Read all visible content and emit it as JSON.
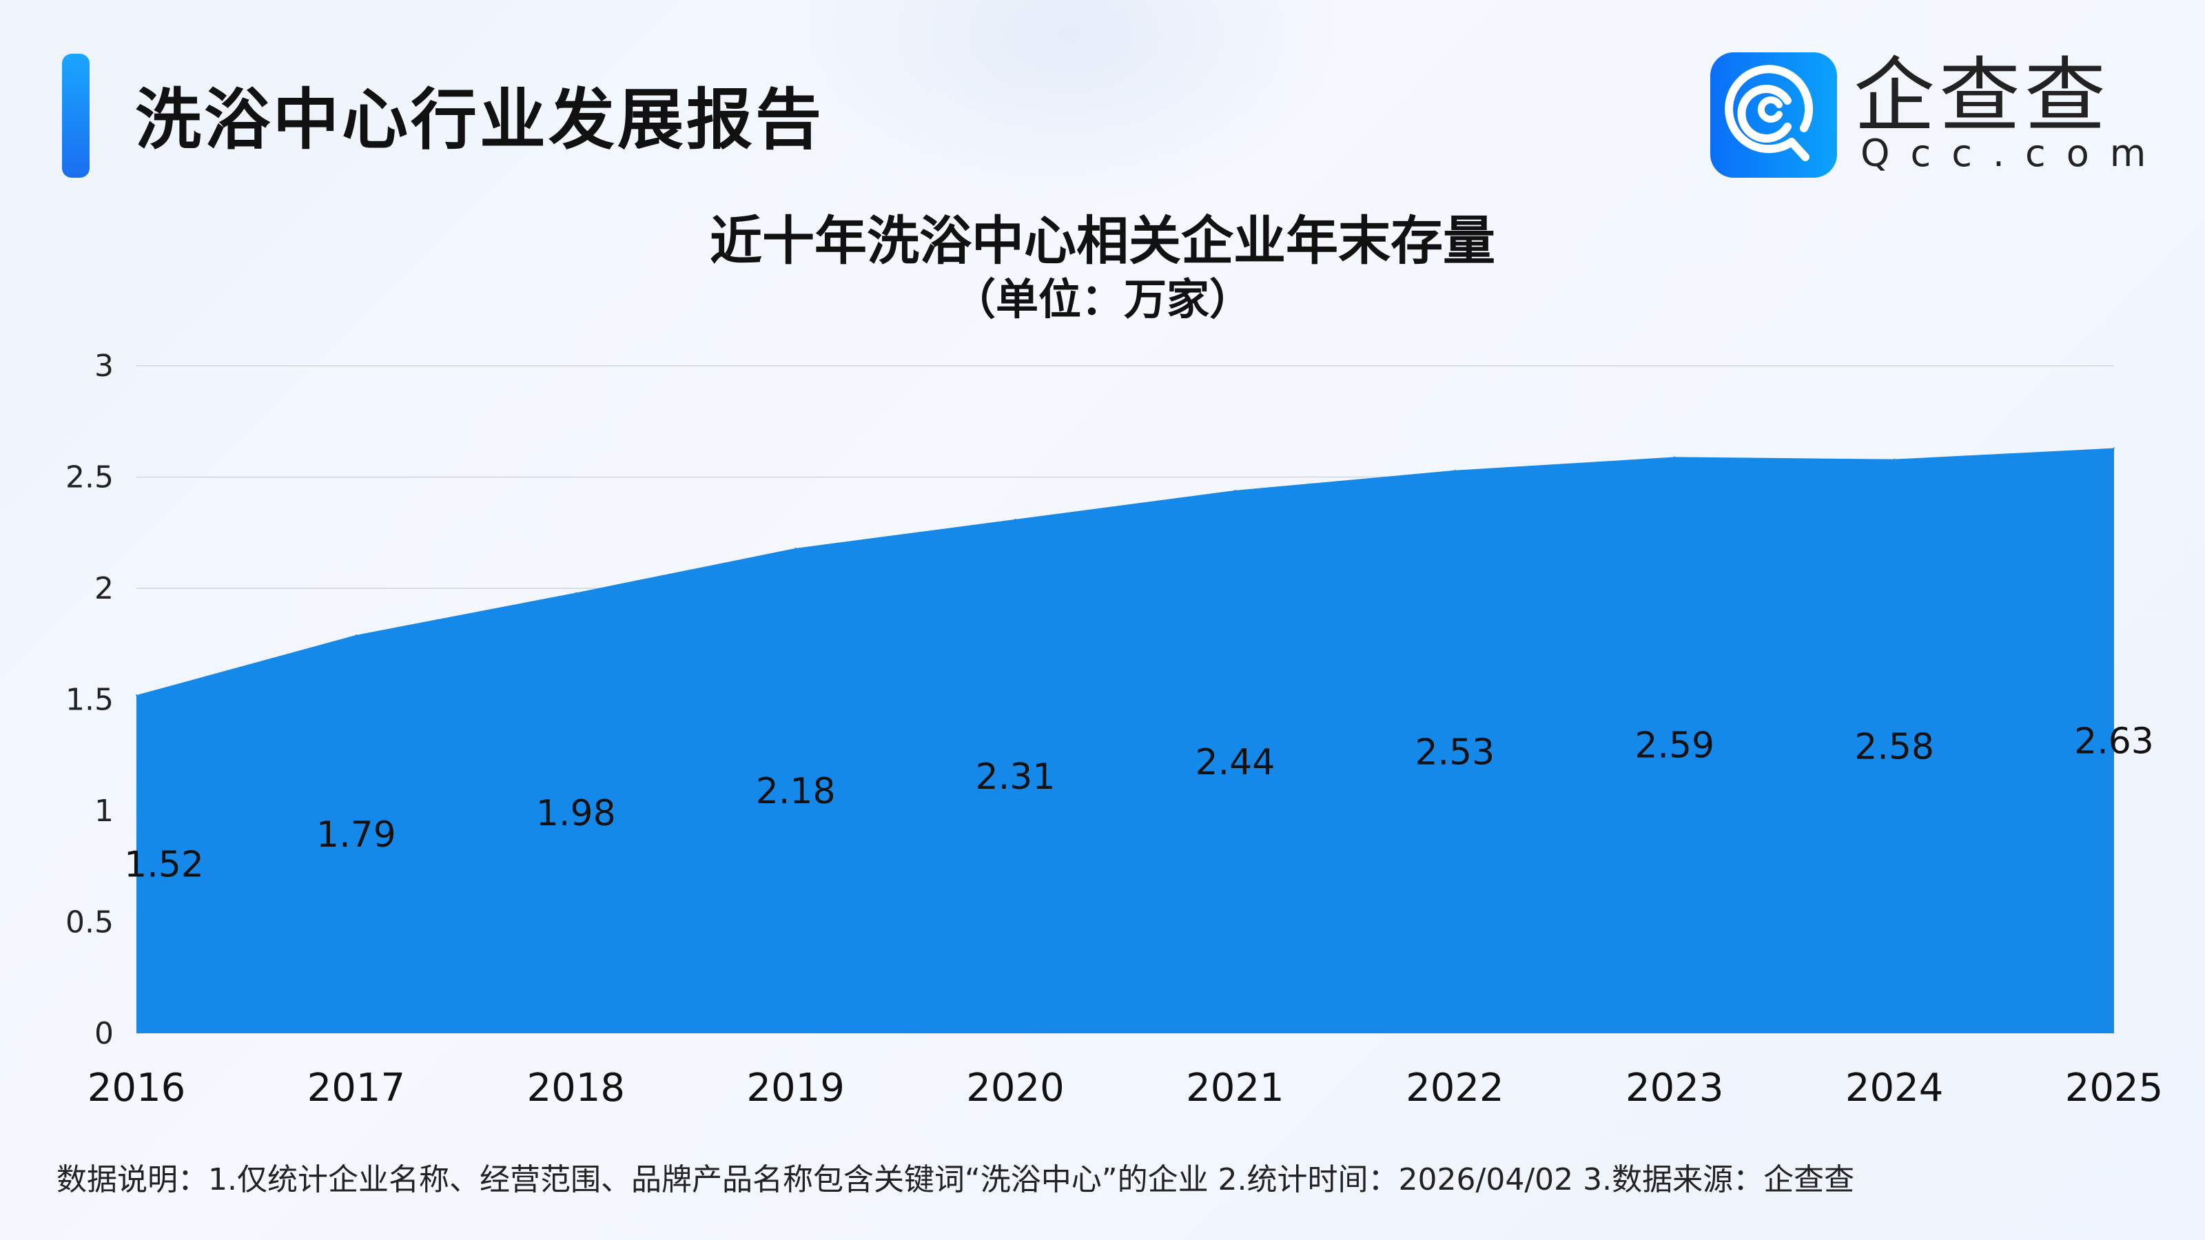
{
  "header": {
    "title": "洗浴中心行业发展报告",
    "logo_cn": "企查查",
    "logo_en": "Qcc.com"
  },
  "colors": {
    "area": "#1589ea",
    "accent": "#1a8af5",
    "grid": "#d9dde4"
  },
  "chart_data": {
    "type": "area",
    "title": "近十年洗浴中心相关企业年末存量",
    "subtitle": "（单位：万家）",
    "categories": [
      "2016",
      "2017",
      "2018",
      "2019",
      "2020",
      "2021",
      "2022",
      "2023",
      "2024",
      "2025"
    ],
    "values": [
      1.52,
      1.79,
      1.98,
      2.18,
      2.31,
      2.44,
      2.53,
      2.59,
      2.58,
      2.63
    ],
    "data_labels": [
      "1.52",
      "1.79",
      "1.98",
      "2.18",
      "2.31",
      "2.44",
      "2.53",
      "2.59",
      "2.58",
      "2.63"
    ],
    "ylim": [
      0,
      3
    ],
    "yticks": [
      "0",
      "0.5",
      "1",
      "1.5",
      "2",
      "2.5",
      "3"
    ],
    "grid": true
  },
  "footer": {
    "note": "数据说明：1.仅统计企业名称、经营范围、品牌产品名称包含关键词“洗浴中心”的企业   2.统计时间：2026/04/02   3.数据来源：企查查"
  }
}
